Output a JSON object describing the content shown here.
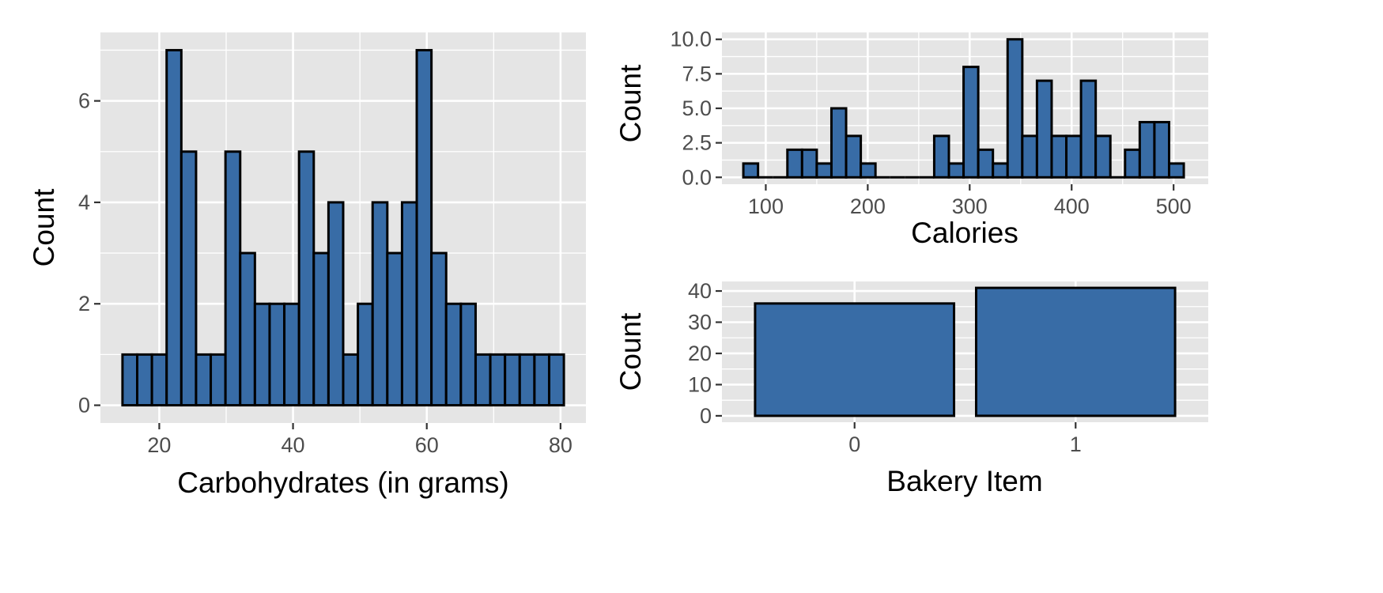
{
  "colors": {
    "panel_background": "#e5e5e5",
    "grid": "#ffffff",
    "bar_fill": "#386ca6",
    "bar_outline": "#000000",
    "tick_text": "#4d4d4d"
  },
  "chart_data": [
    {
      "id": "carbs",
      "type": "bar",
      "subtype": "histogram",
      "xlabel": "Carbohydrates (in grams)",
      "ylabel": "Count",
      "xlim": [
        11.2,
        83.8
      ],
      "ylim": [
        -0.35,
        7.35
      ],
      "x_ticks": [
        20,
        40,
        60,
        80
      ],
      "y_ticks": [
        0,
        2,
        4,
        6
      ],
      "bin_start": 14.5,
      "bin_width": 2.2,
      "counts": [
        1,
        1,
        1,
        7,
        5,
        1,
        1,
        5,
        3,
        2,
        2,
        2,
        5,
        3,
        4,
        1,
        2,
        4,
        3,
        4,
        7,
        3,
        2,
        2,
        1,
        1,
        1,
        1,
        1,
        1
      ],
      "grid": true
    },
    {
      "id": "calories",
      "type": "bar",
      "subtype": "histogram",
      "xlabel": "Calories",
      "ylabel": "Count",
      "xlim": [
        57,
        534
      ],
      "ylim": [
        -0.5,
        10.5
      ],
      "x_ticks": [
        100,
        200,
        300,
        400,
        500
      ],
      "y_ticks": [
        0.0,
        2.5,
        5.0,
        7.5,
        10.0
      ],
      "y_tick_labels": [
        "0.0",
        "2.5",
        "5.0",
        "7.5",
        "10.0"
      ],
      "bin_start": 78,
      "bin_width": 14.4,
      "counts": [
        1,
        0,
        0,
        2,
        2,
        1,
        5,
        3,
        1,
        0,
        0,
        0,
        0,
        3,
        1,
        8,
        2,
        1,
        10,
        3,
        7,
        3,
        3,
        7,
        3,
        0,
        2,
        4,
        4,
        1
      ],
      "grid": true
    },
    {
      "id": "bakery",
      "type": "bar",
      "xlabel": "Bakery Item",
      "ylabel": "Count",
      "categories": [
        "0",
        "1"
      ],
      "values": [
        36,
        41
      ],
      "ylim": [
        -2.05,
        43.05
      ],
      "y_ticks": [
        0,
        10,
        20,
        30,
        40
      ],
      "grid": true
    }
  ]
}
